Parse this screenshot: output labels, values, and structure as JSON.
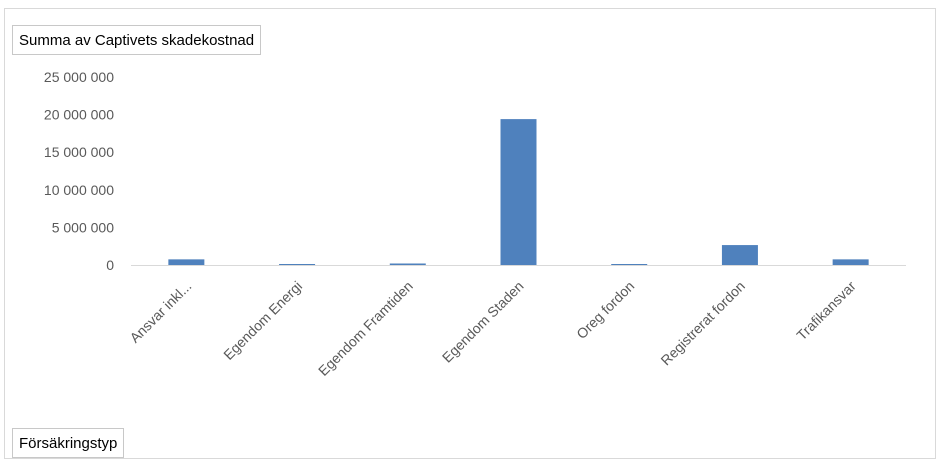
{
  "fields": {
    "value_field": "Summa av Captivets skadekostnad",
    "axis_field": "Försäkringstyp"
  },
  "chart_data": {
    "type": "bar",
    "categories": [
      "Ansvar inkl...",
      "Egendom Energi",
      "Egendom Framtiden",
      "Egendom Staden",
      "Oreg fordon",
      "Registrerat fordon",
      "Trafikansvar"
    ],
    "values": [
      750000,
      30000,
      200000,
      19400000,
      60000,
      2650000,
      750000
    ],
    "y_ticks": [
      "0",
      "5 000 000",
      "10 000 000",
      "15 000 000",
      "20 000 000",
      "25 000 000"
    ],
    "ylim": [
      0,
      25000000
    ],
    "title": "",
    "xlabel": "",
    "ylabel": "",
    "bar_color": "#4f81bd",
    "axis_color": "#d9d9d9",
    "text_color": "#595959"
  }
}
